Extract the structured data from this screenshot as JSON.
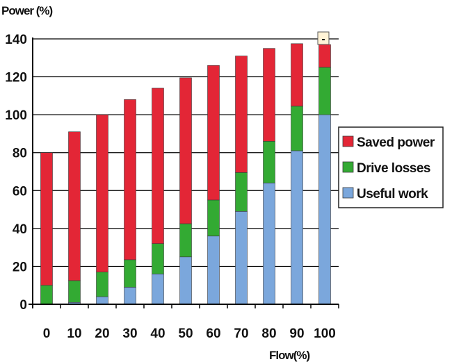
{
  "chart_data": {
    "type": "bar",
    "stacked": true,
    "categories": [
      "0",
      "10",
      "20",
      "30",
      "40",
      "50",
      "60",
      "70",
      "80",
      "90",
      "100"
    ],
    "series": [
      {
        "name": "Useful work",
        "color": "#7ba7dc",
        "values": [
          0,
          1,
          4,
          9,
          16,
          25,
          36,
          49,
          64,
          81,
          100
        ]
      },
      {
        "name": "Drive losses",
        "color": "#33aa33",
        "values": [
          10,
          11.5,
          13,
          14.5,
          16,
          17.5,
          19,
          20.5,
          22,
          23.5,
          25
        ]
      },
      {
        "name": "Saved power",
        "color": "#e32636",
        "values": [
          70,
          78.5,
          83,
          84.5,
          82,
          77,
          71,
          61.5,
          49,
          33,
          12
        ]
      }
    ],
    "xlabel": "Flow(%)",
    "ylabel": "Power (%)",
    "ylim": [
      0,
      140
    ],
    "yticks": [
      0,
      20,
      40,
      60,
      80,
      100,
      120,
      140
    ],
    "grid": true,
    "legend": "right",
    "legend_order": [
      "Saved power",
      "Drive losses",
      "Useful work"
    ],
    "corner_badge": "-"
  }
}
